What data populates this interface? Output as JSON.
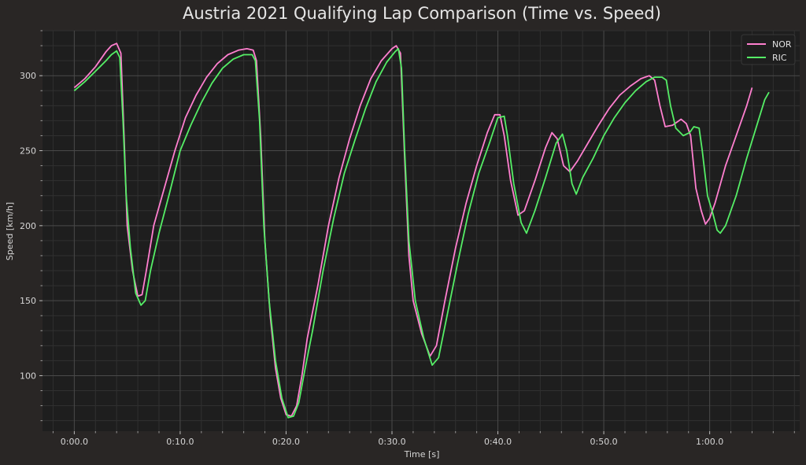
{
  "chart_data": {
    "type": "line",
    "title": "Austria 2021 Qualifying Lap Comparison (Time vs. Speed)",
    "xlabel": "Time [s]",
    "ylabel": "Speed [km/h]",
    "xlim": [
      -3,
      68.5
    ],
    "ylim": [
      63,
      330
    ],
    "x_ticks": [
      0,
      10,
      20,
      30,
      40,
      50,
      60
    ],
    "x_tick_labels": [
      "0:00.0",
      "0:10.0",
      "0:20.0",
      "0:30.0",
      "0:40.0",
      "0:50.0",
      "1:00.0"
    ],
    "y_ticks": [
      100,
      150,
      200,
      250,
      300
    ],
    "y_tick_labels": [
      "100",
      "150",
      "200",
      "250",
      "300"
    ],
    "grid": true,
    "legend_position": "top-right",
    "colors": {
      "background": "#292625",
      "plot_background": "#1e1e1e",
      "grid_major": "#4a4a4a",
      "grid_minor": "#303030",
      "text": "#e6e6e6"
    },
    "series": [
      {
        "name": "NOR",
        "color": "#ff7fcf",
        "points": [
          [
            0,
            292
          ],
          [
            1,
            298
          ],
          [
            2,
            306
          ],
          [
            3,
            316
          ],
          [
            3.5,
            320
          ],
          [
            4.0,
            321.5
          ],
          [
            4.4,
            315
          ],
          [
            4.7,
            260
          ],
          [
            5.0,
            200
          ],
          [
            5.5,
            170
          ],
          [
            6.0,
            153
          ],
          [
            6.4,
            154
          ],
          [
            6.8,
            170
          ],
          [
            7.5,
            200
          ],
          [
            8.5,
            225
          ],
          [
            9.5,
            250
          ],
          [
            10.5,
            272
          ],
          [
            11.5,
            287
          ],
          [
            12.5,
            299
          ],
          [
            13.5,
            308
          ],
          [
            14.5,
            314
          ],
          [
            15.5,
            317
          ],
          [
            16.3,
            318
          ],
          [
            16.9,
            317
          ],
          [
            17.2,
            310
          ],
          [
            17.6,
            260
          ],
          [
            18.0,
            190
          ],
          [
            18.5,
            140
          ],
          [
            19.0,
            105
          ],
          [
            19.5,
            85
          ],
          [
            20.0,
            74
          ],
          [
            20.5,
            73
          ],
          [
            21.0,
            80
          ],
          [
            21.5,
            100
          ],
          [
            22.0,
            125
          ],
          [
            23.0,
            160
          ],
          [
            24.0,
            200
          ],
          [
            25.0,
            232
          ],
          [
            26.0,
            258
          ],
          [
            27.0,
            280
          ],
          [
            28.0,
            298
          ],
          [
            29.0,
            310
          ],
          [
            30.0,
            318
          ],
          [
            30.4,
            320
          ],
          [
            30.8,
            315
          ],
          [
            31.2,
            245
          ],
          [
            31.6,
            180
          ],
          [
            32.0,
            150
          ],
          [
            32.8,
            128
          ],
          [
            33.6,
            113
          ],
          [
            34.2,
            120
          ],
          [
            35.0,
            150
          ],
          [
            36.0,
            185
          ],
          [
            37.0,
            215
          ],
          [
            38.0,
            240
          ],
          [
            39.0,
            262
          ],
          [
            39.7,
            274
          ],
          [
            40.2,
            274
          ],
          [
            40.6,
            260
          ],
          [
            41.2,
            230
          ],
          [
            41.9,
            207
          ],
          [
            42.5,
            210
          ],
          [
            43.5,
            230
          ],
          [
            44.5,
            252
          ],
          [
            45.1,
            262
          ],
          [
            45.6,
            258
          ],
          [
            46.2,
            240
          ],
          [
            46.8,
            236
          ],
          [
            47.5,
            243
          ],
          [
            48.5,
            255
          ],
          [
            49.5,
            267
          ],
          [
            50.5,
            278
          ],
          [
            51.5,
            287
          ],
          [
            52.5,
            293
          ],
          [
            53.5,
            298
          ],
          [
            54.3,
            300
          ],
          [
            54.8,
            297
          ],
          [
            55.3,
            280
          ],
          [
            55.8,
            266
          ],
          [
            56.5,
            267
          ],
          [
            57.3,
            271
          ],
          [
            57.8,
            268
          ],
          [
            58.2,
            260
          ],
          [
            58.7,
            225
          ],
          [
            59.2,
            210
          ],
          [
            59.6,
            201
          ],
          [
            60.0,
            205
          ],
          [
            60.5,
            215
          ],
          [
            61.5,
            240
          ],
          [
            62.5,
            260
          ],
          [
            63.5,
            280
          ],
          [
            64.0,
            292
          ]
        ]
      },
      {
        "name": "RIC",
        "color": "#55ee66",
        "points": [
          [
            0,
            290
          ],
          [
            1,
            296
          ],
          [
            2,
            303
          ],
          [
            3,
            310
          ],
          [
            3.5,
            314
          ],
          [
            4.0,
            316.5
          ],
          [
            4.3,
            312
          ],
          [
            4.6,
            270
          ],
          [
            4.9,
            220
          ],
          [
            5.3,
            185
          ],
          [
            5.8,
            155
          ],
          [
            6.3,
            147
          ],
          [
            6.7,
            150
          ],
          [
            7.2,
            170
          ],
          [
            8.0,
            195
          ],
          [
            9.0,
            222
          ],
          [
            10.0,
            250
          ],
          [
            11.0,
            267
          ],
          [
            12.0,
            282
          ],
          [
            13.0,
            295
          ],
          [
            14.0,
            305
          ],
          [
            15.0,
            311
          ],
          [
            16.0,
            314
          ],
          [
            16.8,
            314
          ],
          [
            17.1,
            310
          ],
          [
            17.5,
            270
          ],
          [
            17.9,
            200
          ],
          [
            18.4,
            150
          ],
          [
            19.0,
            110
          ],
          [
            19.6,
            85
          ],
          [
            20.2,
            72
          ],
          [
            20.7,
            73
          ],
          [
            21.2,
            82
          ],
          [
            21.8,
            105
          ],
          [
            22.5,
            130
          ],
          [
            23.5,
            170
          ],
          [
            24.5,
            205
          ],
          [
            25.5,
            235
          ],
          [
            26.5,
            257
          ],
          [
            27.5,
            278
          ],
          [
            28.5,
            296
          ],
          [
            29.5,
            309
          ],
          [
            30.3,
            316
          ],
          [
            30.6,
            318
          ],
          [
            30.9,
            305
          ],
          [
            31.2,
            250
          ],
          [
            31.6,
            190
          ],
          [
            32.2,
            150
          ],
          [
            33.0,
            125
          ],
          [
            33.8,
            107
          ],
          [
            34.4,
            112
          ],
          [
            35.2,
            140
          ],
          [
            36.2,
            175
          ],
          [
            37.2,
            208
          ],
          [
            38.2,
            235
          ],
          [
            39.2,
            255
          ],
          [
            40.0,
            272
          ],
          [
            40.6,
            273
          ],
          [
            40.9,
            260
          ],
          [
            41.5,
            228
          ],
          [
            42.2,
            202
          ],
          [
            42.7,
            195
          ],
          [
            43.5,
            210
          ],
          [
            44.5,
            232
          ],
          [
            45.5,
            255
          ],
          [
            46.1,
            261
          ],
          [
            46.5,
            250
          ],
          [
            47.0,
            228
          ],
          [
            47.4,
            221
          ],
          [
            48.0,
            232
          ],
          [
            49.0,
            245
          ],
          [
            50.0,
            260
          ],
          [
            51.0,
            272
          ],
          [
            52.0,
            282
          ],
          [
            53.0,
            290
          ],
          [
            54.0,
            296
          ],
          [
            54.8,
            299
          ],
          [
            55.5,
            299
          ],
          [
            55.9,
            297
          ],
          [
            56.3,
            280
          ],
          [
            56.8,
            265
          ],
          [
            57.5,
            260
          ],
          [
            58.1,
            262
          ],
          [
            58.5,
            266
          ],
          [
            59.0,
            265
          ],
          [
            59.3,
            250
          ],
          [
            59.8,
            220
          ],
          [
            60.3,
            208
          ],
          [
            60.7,
            197
          ],
          [
            61.0,
            195
          ],
          [
            61.5,
            200
          ],
          [
            62.5,
            220
          ],
          [
            63.5,
            245
          ],
          [
            64.5,
            268
          ],
          [
            65.2,
            284
          ],
          [
            65.6,
            289
          ]
        ]
      }
    ]
  }
}
